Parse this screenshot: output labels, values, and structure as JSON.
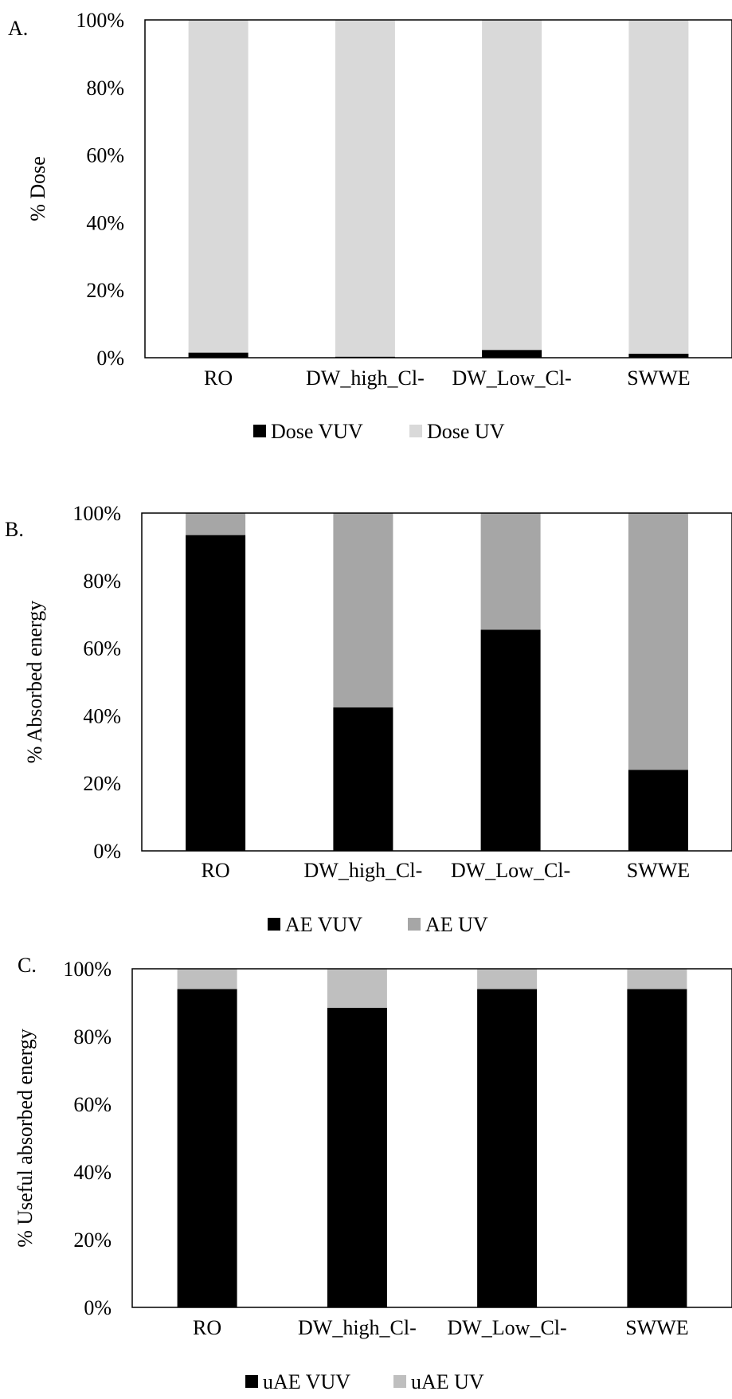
{
  "chart_data": [
    {
      "type": "bar",
      "stacked": true,
      "panel_label": "A.",
      "ylabel": "% Dose",
      "categories": [
        "RO",
        "DW_high_Cl-",
        "DW_Low_Cl-",
        "SWWE"
      ],
      "yticks": [
        "0%",
        "20%",
        "40%",
        "60%",
        "80%",
        "100%"
      ],
      "ylim": [
        0,
        100
      ],
      "legend_position": "bottom",
      "series": [
        {
          "name": "Dose VUV",
          "color": "#000000",
          "values": [
            1.5,
            0.3,
            2.3,
            1.2
          ]
        },
        {
          "name": "Dose UV",
          "color": "#d9d9d9",
          "values": [
            98.5,
            99.7,
            97.7,
            98.8
          ]
        }
      ]
    },
    {
      "type": "bar",
      "stacked": true,
      "panel_label": "B.",
      "ylabel": "% Absorbed energy",
      "categories": [
        "RO",
        "DW_high_Cl-",
        "DW_Low_Cl-",
        "SWWE"
      ],
      "yticks": [
        "0%",
        "20%",
        "40%",
        "60%",
        "80%",
        "100%"
      ],
      "ylim": [
        0,
        100
      ],
      "legend_position": "bottom",
      "series": [
        {
          "name": "AE VUV",
          "color": "#000000",
          "values": [
            93.5,
            42.5,
            65.5,
            24
          ]
        },
        {
          "name": "AE UV",
          "color": "#a6a6a6",
          "values": [
            6.5,
            57.5,
            34.5,
            76
          ]
        }
      ]
    },
    {
      "type": "bar",
      "stacked": true,
      "panel_label": "C.",
      "ylabel": "% Useful absorbed energy",
      "categories": [
        "RO",
        "DW_high_Cl-",
        "DW_Low_Cl-",
        "SWWE"
      ],
      "yticks": [
        "0%",
        "20%",
        "40%",
        "60%",
        "80%",
        "100%"
      ],
      "ylim": [
        0,
        100
      ],
      "legend_position": "bottom",
      "series": [
        {
          "name": "uAE VUV",
          "color": "#000000",
          "values": [
            94,
            88.5,
            94,
            94
          ]
        },
        {
          "name": "uAE UV",
          "color": "#bfbfbf",
          "values": [
            6,
            11.5,
            6,
            6
          ]
        }
      ]
    }
  ]
}
